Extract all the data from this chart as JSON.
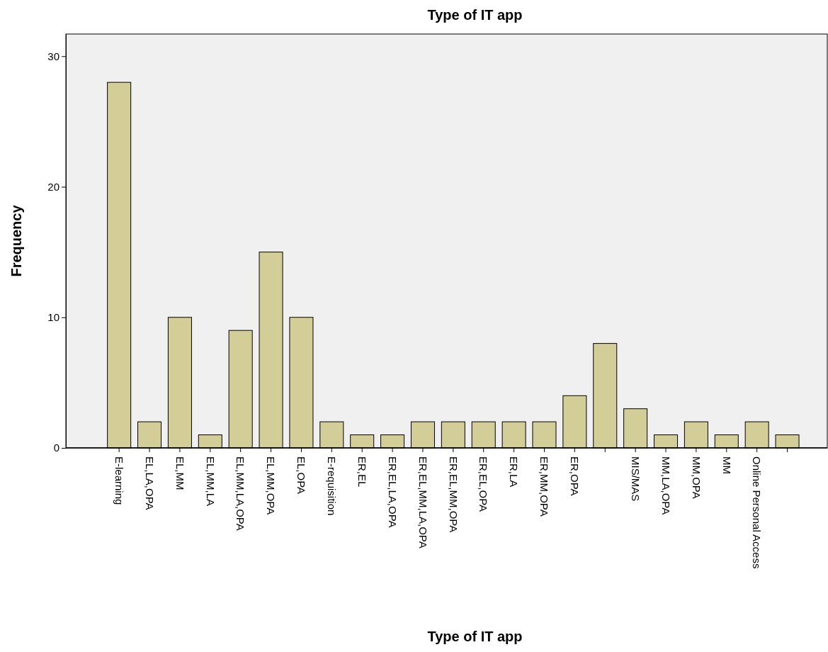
{
  "chart_data": {
    "type": "bar",
    "title": "Type of IT app",
    "xlabel": "Type of IT app",
    "ylabel": "Frequency",
    "categories": [
      "E-learning",
      "EL,LA,OPA",
      "EL,MM",
      "EL,MM,LA",
      "EL,MM,LA,OPA",
      "EL,MM,OPA",
      "EL,OPA",
      "E-requisition",
      "ER,EL",
      "ER,EL,LA,OPA",
      "ER,EL,MM,LA,OPA",
      "ER,EL,MM,OPA",
      "ER,EL,OPA",
      "ER,LA",
      "ER,MM,OPA",
      "ER,OPA",
      null,
      "MIS/MAS",
      "MM,LA,OPA",
      "MM,OPA",
      "MM",
      "Online Personal Access",
      null
    ],
    "values": [
      28,
      2,
      10,
      1,
      9,
      15,
      10,
      2,
      1,
      1,
      2,
      2,
      2,
      2,
      2,
      4,
      8,
      3,
      1,
      2,
      1,
      2,
      1
    ],
    "color": "#d3ce97",
    "ylim": [
      0,
      31.7
    ],
    "yticks": [
      0,
      10,
      20,
      30
    ],
    "grid": false
  }
}
